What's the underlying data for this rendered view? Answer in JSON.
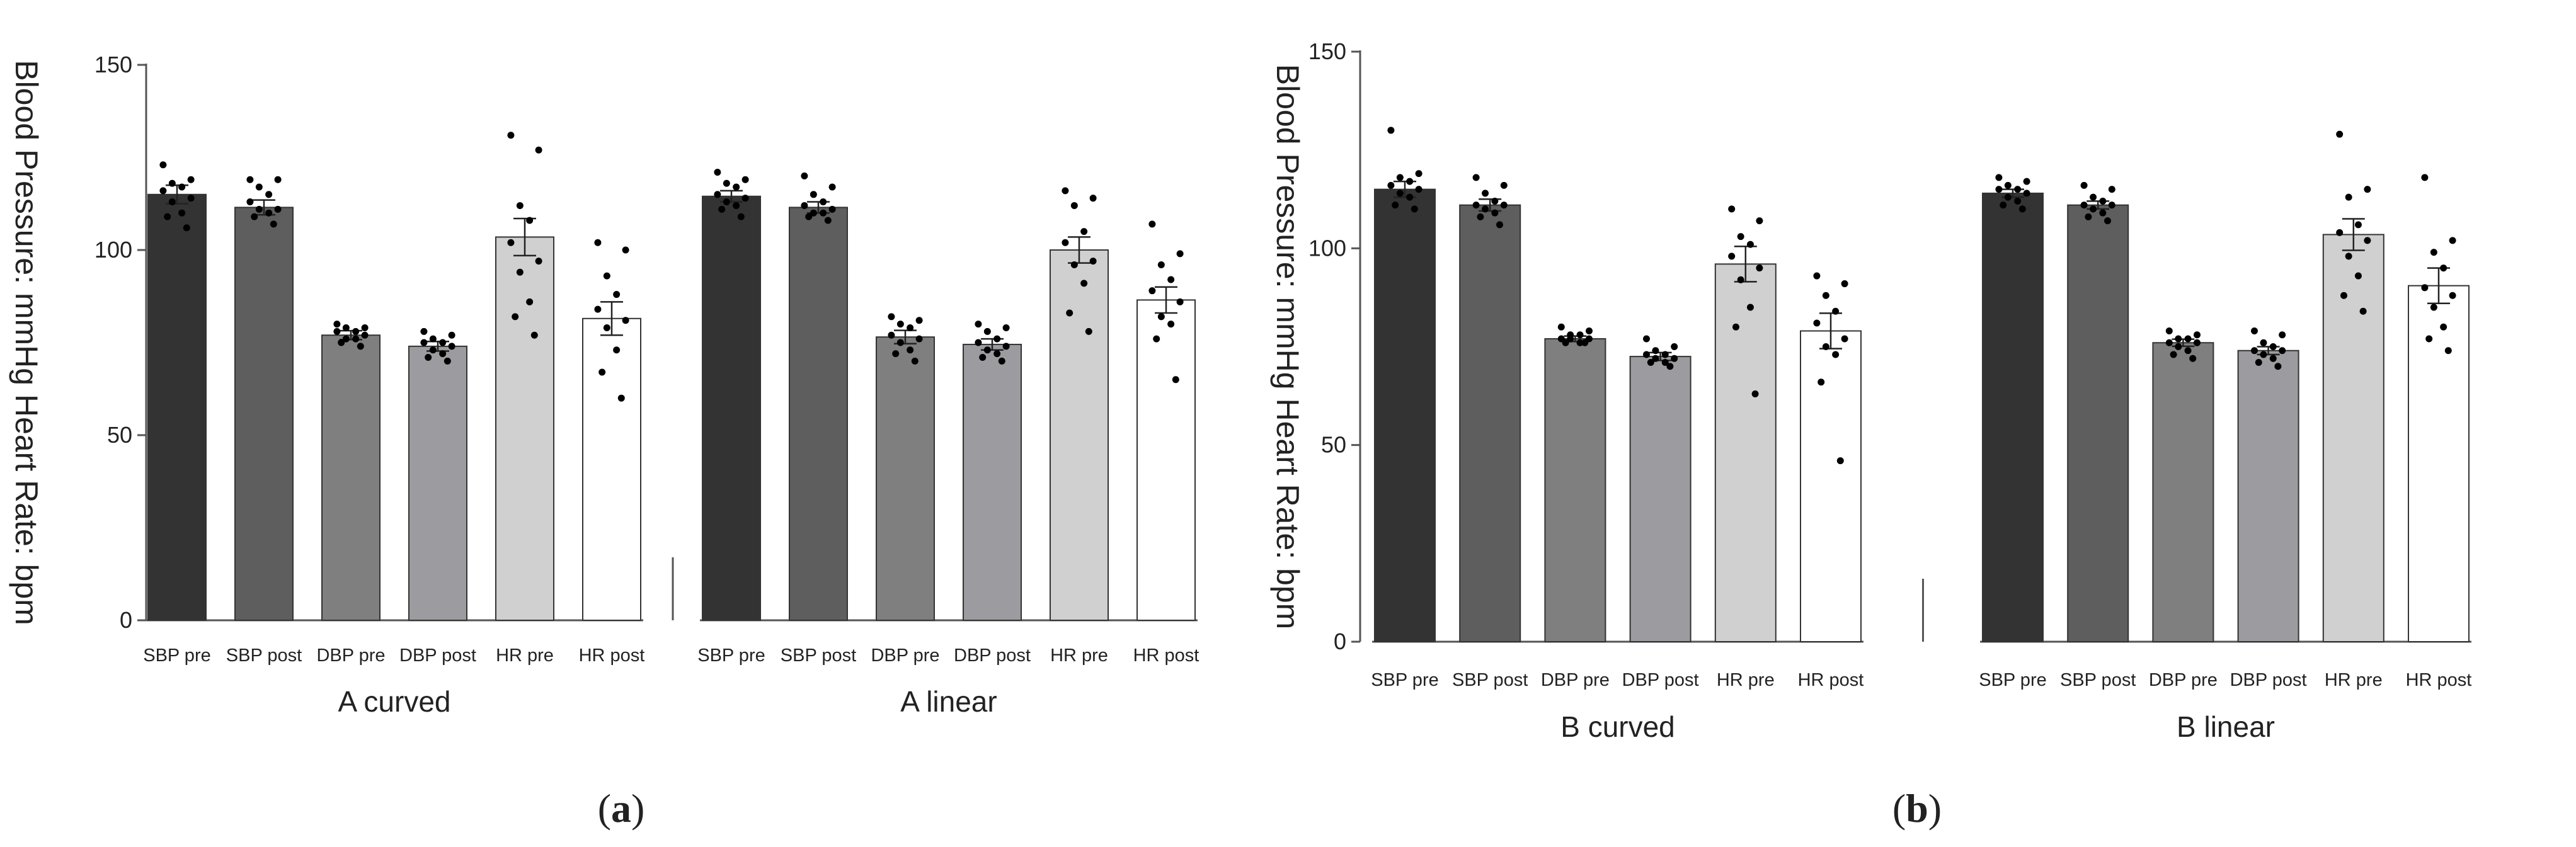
{
  "chart_data": [
    {
      "type": "bar",
      "panel_label": "a",
      "ylabel": "Blood Pressure: mmHg  Heart Rate: bpm",
      "ylim": [
        0,
        150
      ],
      "yticks": [
        "0",
        "50",
        "100",
        "150"
      ],
      "groups": [
        {
          "name": "A curved",
          "categories": [
            "SBP pre",
            "SBP post",
            "DBP pre",
            "DBP post",
            "HR pre",
            "HR post"
          ],
          "values": [
            115,
            111.5,
            77,
            74,
            103.5,
            81.5
          ],
          "errors": [
            2.5,
            2,
            1.2,
            1.3,
            5,
            4.5
          ],
          "points": [
            [
              123,
              119,
              118,
              117,
              116,
              114,
              113,
              110,
              109,
              106
            ],
            [
              119,
              119,
              117,
              115,
              113,
              111,
              111,
              110,
              109,
              107
            ],
            [
              80,
              79,
              79,
              78,
              78,
              77,
              76,
              76,
              75,
              74
            ],
            [
              78,
              77,
              76,
              75,
              75,
              74,
              73,
              72,
              71,
              70
            ],
            [
              131,
              127,
              112,
              108,
              102,
              97,
              94,
              86,
              82,
              77
            ],
            [
              102,
              100,
              93,
              88,
              84,
              81,
              79,
              73,
              67,
              60
            ]
          ]
        },
        {
          "name": "A linear",
          "categories": [
            "SBP pre",
            "SBP post",
            "DBP pre",
            "DBP post",
            "HR pre",
            "HR post"
          ],
          "values": [
            114.5,
            111.5,
            76.5,
            74.5,
            100,
            86.5
          ],
          "errors": [
            1.5,
            1.5,
            1.8,
            1.5,
            3.5,
            3.5
          ],
          "points": [
            [
              121,
              119,
              118,
              117,
              115,
              114,
              113,
              112,
              111,
              109
            ],
            [
              120,
              117,
              115,
              113,
              112,
              111,
              110,
              110,
              109,
              108
            ],
            [
              82,
              81,
              80,
              79,
              77,
              76,
              75,
              73,
              72,
              70
            ],
            [
              80,
              79,
              78,
              76,
              75,
              74,
              73,
              72,
              71,
              70
            ],
            [
              116,
              114,
              112,
              105,
              102,
              97,
              96,
              91,
              83,
              78
            ],
            [
              107,
              99,
              96,
              92,
              89,
              86,
              82,
              80,
              76,
              65
            ]
          ]
        }
      ]
    },
    {
      "type": "bar",
      "panel_label": "b",
      "ylabel": "Blood Pressure: mmHg  Heart Rate: bpm",
      "ylim": [
        0,
        150
      ],
      "yticks": [
        "0",
        "50",
        "100",
        "150"
      ],
      "groups": [
        {
          "name": "B curved",
          "categories": [
            "SBP pre",
            "SBP post",
            "DBP pre",
            "DBP post",
            "HR pre",
            "HR post"
          ],
          "values": [
            115,
            111,
            77,
            72.5,
            96,
            79
          ],
          "errors": [
            2,
            1.5,
            0.7,
            1,
            4.5,
            4.5
          ],
          "points": [
            [
              130,
              119,
              118,
              117,
              116,
              115,
              114,
              113,
              111,
              110
            ],
            [
              118,
              116,
              114,
              112,
              111,
              111,
              110,
              109,
              108,
              106
            ],
            [
              80,
              79,
              78,
              78,
              77,
              77,
              77,
              76,
              76,
              76
            ],
            [
              77,
              75,
              74,
              73,
              73,
              72,
              72,
              71,
              71,
              70
            ],
            [
              110,
              107,
              103,
              101,
              98,
              95,
              92,
              85,
              80,
              63
            ],
            [
              93,
              91,
              88,
              84,
              81,
              77,
              75,
              73,
              66,
              46
            ]
          ]
        },
        {
          "name": "B linear",
          "categories": [
            "SBP pre",
            "SBP post",
            "DBP pre",
            "DBP post",
            "HR pre",
            "HR post"
          ],
          "values": [
            114,
            111,
            76,
            74,
            103.5,
            90.5
          ],
          "errors": [
            1,
            1,
            0.9,
            1,
            4,
            4.5
          ],
          "points": [
            [
              118,
              117,
              116,
              115,
              115,
              114,
              113,
              112,
              111,
              110
            ],
            [
              116,
              115,
              113,
              112,
              111,
              111,
              110,
              109,
              108,
              107
            ],
            [
              79,
              78,
              77,
              77,
              76,
              76,
              75,
              74,
              73,
              72
            ],
            [
              79,
              78,
              76,
              75,
              74,
              74,
              73,
              72,
              71,
              70
            ],
            [
              129,
              115,
              113,
              106,
              104,
              102,
              98,
              93,
              88,
              84
            ],
            [
              118,
              102,
              99,
              95,
              90,
              88,
              85,
              80,
              77,
              74
            ]
          ]
        }
      ]
    }
  ],
  "colors": [
    "#333333",
    "#5e5e5e",
    "#7f7f7f",
    "#9c9ca0",
    "#d0d0d0",
    "#ffffff"
  ],
  "point_color": "#000000",
  "axis_color": "#555555"
}
